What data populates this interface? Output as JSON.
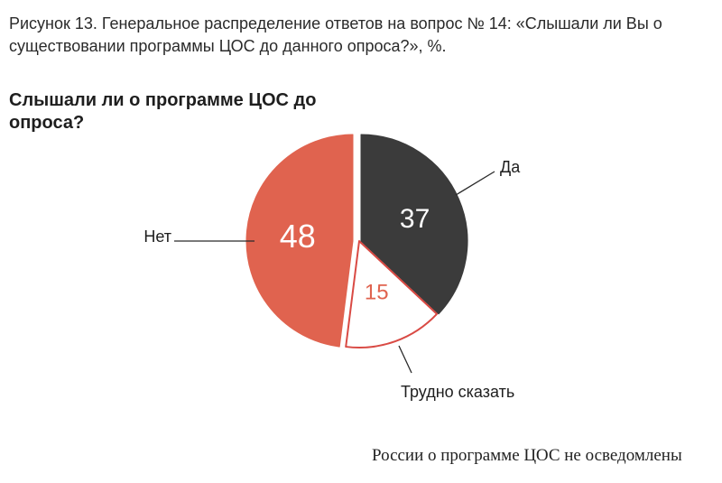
{
  "caption": "Рисунок 13. Генеральное распределение ответов на вопрос № 14: «Слышали ли Вы о существовании программы ЦОС до данного опроса?», %.",
  "chart_data": {
    "type": "pie",
    "title": "Слышали ли о программе ЦОС до опроса?",
    "unit": "%",
    "slices": [
      {
        "label": "Да",
        "value": 37,
        "color": "#3b3b3b",
        "value_color": "#ffffff"
      },
      {
        "label": "Трудно сказать",
        "value": 15,
        "color": "#ffffff",
        "value_color": "#e0634f"
      },
      {
        "label": "Нет",
        "value": 48,
        "color": "#e0634f",
        "value_color": "#ffffff"
      }
    ],
    "outline_color": "#d94a44"
  },
  "footer_text": "России о программе ЦОС не осведомлены"
}
